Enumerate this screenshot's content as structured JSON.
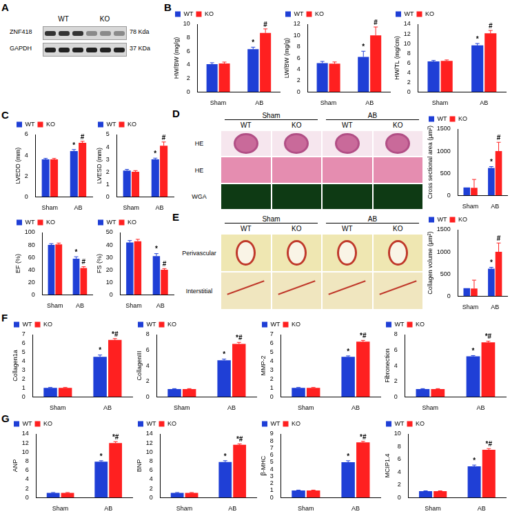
{
  "panel_labels": [
    "A",
    "B",
    "C",
    "D",
    "E",
    "F",
    "G"
  ],
  "blot": {
    "groups": [
      "WT",
      "KO"
    ],
    "bands": [
      {
        "name": "ZNF418",
        "size": "78 Kda"
      },
      {
        "name": "GAPDH",
        "size": "37 KDa"
      }
    ]
  },
  "histology": [
    {
      "groups": [
        "Sham",
        "AB"
      ],
      "columns": [
        "WT",
        "KO",
        "WT",
        "KO"
      ],
      "rows": [
        "HE",
        "HE",
        "WGA"
      ]
    },
    {
      "groups": [
        "Sham",
        "AB"
      ],
      "columns": [
        "WT",
        "KO",
        "WT",
        "KO"
      ],
      "rows": [
        "Perivascular",
        "Interstitial"
      ]
    }
  ],
  "chart_data": [
    {
      "type": "bar",
      "ylabel": "HW/BW (mg/g)",
      "categories": [
        "Sham",
        "AB"
      ],
      "ylim": [
        0,
        10
      ],
      "yticks": [
        0,
        2,
        4,
        6,
        8,
        10
      ],
      "legend": "top-left",
      "grid": false,
      "series": [
        {
          "name": "WT",
          "color": "#1f3fd6",
          "values": [
            4.1,
            6.3
          ],
          "errors": [
            0.2,
            0.3
          ],
          "annotations": [
            null,
            "*"
          ]
        },
        {
          "name": "KO",
          "color": "#ff2020",
          "values": [
            4.2,
            8.7
          ],
          "errors": [
            0.2,
            0.6
          ],
          "annotations": [
            null,
            "#"
          ]
        }
      ]
    },
    {
      "type": "bar",
      "ylabel": "LW/BW (mg/g)",
      "categories": [
        "Sham",
        "AB"
      ],
      "ylim": [
        0,
        12
      ],
      "yticks": [
        0,
        2,
        4,
        6,
        8,
        10,
        12
      ],
      "legend": "top-left",
      "grid": false,
      "series": [
        {
          "name": "WT",
          "color": "#1f3fd6",
          "values": [
            5.1,
            6.2
          ],
          "errors": [
            0.3,
            1.0
          ],
          "annotations": [
            null,
            "*"
          ]
        },
        {
          "name": "KO",
          "color": "#ff2020",
          "values": [
            5.0,
            10.0
          ],
          "errors": [
            0.3,
            1.5
          ],
          "annotations": [
            null,
            "#"
          ]
        }
      ]
    },
    {
      "type": "bar",
      "ylabel": "HW/TL (mg/cm)",
      "categories": [
        "Sham",
        "AB"
      ],
      "ylim": [
        0,
        14
      ],
      "yticks": [
        0,
        2,
        4,
        6,
        8,
        10,
        12,
        14
      ],
      "legend": "top-left",
      "grid": false,
      "series": [
        {
          "name": "WT",
          "color": "#1f3fd6",
          "values": [
            6.3,
            9.6
          ],
          "errors": [
            0.2,
            0.4
          ],
          "annotations": [
            null,
            "*"
          ]
        },
        {
          "name": "KO",
          "color": "#ff2020",
          "values": [
            6.4,
            12.1
          ],
          "errors": [
            0.2,
            0.6
          ],
          "annotations": [
            null,
            "#"
          ]
        }
      ]
    },
    {
      "type": "bar",
      "ylabel": "LVEDD (mm)",
      "categories": [
        "Sham",
        "AB"
      ],
      "ylim": [
        0,
        6
      ],
      "yticks": [
        0,
        2,
        4,
        6
      ],
      "legend": "top-left",
      "grid": false,
      "series": [
        {
          "name": "WT",
          "color": "#1f3fd6",
          "values": [
            3.6,
            4.4
          ],
          "errors": [
            0.1,
            0.15
          ],
          "annotations": [
            null,
            "*"
          ]
        },
        {
          "name": "KO",
          "color": "#ff2020",
          "values": [
            3.6,
            5.2
          ],
          "errors": [
            0.1,
            0.15
          ],
          "annotations": [
            null,
            "#"
          ]
        }
      ]
    },
    {
      "type": "bar",
      "ylabel": "LVESD (mm)",
      "categories": [
        "Sham",
        "AB"
      ],
      "ylim": [
        0,
        5
      ],
      "yticks": [
        0,
        1,
        2,
        3,
        4,
        5
      ],
      "legend": "top-left",
      "grid": false,
      "series": [
        {
          "name": "WT",
          "color": "#1f3fd6",
          "values": [
            2.1,
            3.0
          ],
          "errors": [
            0.1,
            0.1
          ],
          "annotations": [
            null,
            "*"
          ]
        },
        {
          "name": "KO",
          "color": "#ff2020",
          "values": [
            2.0,
            4.1
          ],
          "errors": [
            0.1,
            0.3
          ],
          "annotations": [
            null,
            "#"
          ]
        }
      ]
    },
    {
      "type": "bar",
      "ylabel": "EF (%)",
      "categories": [
        "Sham",
        "AB"
      ],
      "ylim": [
        0,
        100
      ],
      "yticks": [
        0,
        20,
        40,
        60,
        80,
        100
      ],
      "legend": "top-left",
      "grid": false,
      "series": [
        {
          "name": "WT",
          "color": "#1f3fd6",
          "values": [
            80,
            58
          ],
          "errors": [
            2,
            3
          ],
          "annotations": [
            null,
            "*"
          ]
        },
        {
          "name": "KO",
          "color": "#ff2020",
          "values": [
            81,
            43
          ],
          "errors": [
            2,
            2
          ],
          "annotations": [
            null,
            "#"
          ]
        }
      ]
    },
    {
      "type": "bar",
      "ylabel": "FS (%)",
      "categories": [
        "Sham",
        "AB"
      ],
      "ylim": [
        0,
        50
      ],
      "yticks": [
        0,
        10,
        20,
        30,
        40,
        50
      ],
      "legend": "top-left",
      "grid": false,
      "series": [
        {
          "name": "WT",
          "color": "#1f3fd6",
          "values": [
            42,
            31
          ],
          "errors": [
            1.5,
            2
          ],
          "annotations": [
            null,
            "*"
          ]
        },
        {
          "name": "KO",
          "color": "#ff2020",
          "values": [
            43,
            20
          ],
          "errors": [
            1.5,
            1
          ],
          "annotations": [
            null,
            "#"
          ]
        }
      ]
    },
    {
      "type": "bar",
      "ylabel": "Cross sectional area (μm²)",
      "categories": [
        "Sham",
        "AB"
      ],
      "ylim": [
        0,
        1500
      ],
      "yticks": [
        0,
        500,
        1000,
        1500
      ],
      "legend": "top-left",
      "grid": false,
      "series": [
        {
          "name": "WT",
          "color": "#1f3fd6",
          "values": [
            180,
            620
          ],
          "errors": [
            0,
            30
          ],
          "annotations": [
            null,
            "*"
          ]
        },
        {
          "name": "KO",
          "color": "#ff2020",
          "values": [
            170,
            1000
          ],
          "errors": [
            190,
            200
          ],
          "annotations": [
            null,
            "#"
          ]
        }
      ]
    },
    {
      "type": "bar",
      "ylabel": "Collagen volume (μm²)",
      "categories": [
        "Sham",
        "AB"
      ],
      "ylim": [
        0,
        1500
      ],
      "yticks": [
        0,
        500,
        1000,
        1500
      ],
      "legend": "top-left",
      "grid": false,
      "series": [
        {
          "name": "WT",
          "color": "#1f3fd6",
          "values": [
            180,
            620
          ],
          "errors": [
            0,
            30
          ],
          "annotations": [
            null,
            "*"
          ]
        },
        {
          "name": "KO",
          "color": "#ff2020",
          "values": [
            170,
            1000
          ],
          "errors": [
            190,
            200
          ],
          "annotations": [
            null,
            "#"
          ]
        }
      ]
    },
    {
      "type": "bar",
      "ylabel": "Collagen1a",
      "categories": [
        "Sham",
        "AB"
      ],
      "ylim": [
        0,
        7
      ],
      "yticks": [
        0,
        1,
        2,
        3,
        4,
        5,
        6,
        7
      ],
      "legend": "top-left",
      "grid": false,
      "series": [
        {
          "name": "WT",
          "color": "#1f3fd6",
          "values": [
            1,
            4.5
          ],
          "errors": [
            0.05,
            0.2
          ],
          "annotations": [
            null,
            "*"
          ]
        },
        {
          "name": "KO",
          "color": "#ff2020",
          "values": [
            1,
            6.4
          ],
          "errors": [
            0.05,
            0.15
          ],
          "annotations": [
            null,
            "*#"
          ]
        }
      ]
    },
    {
      "type": "bar",
      "ylabel": "CollagenIII",
      "categories": [
        "Sham",
        "AB"
      ],
      "ylim": [
        0,
        8
      ],
      "yticks": [
        0,
        2,
        4,
        6,
        8
      ],
      "legend": "top-left",
      "grid": false,
      "series": [
        {
          "name": "WT",
          "color": "#1f3fd6",
          "values": [
            1,
            4.7
          ],
          "errors": [
            0.05,
            0.15
          ],
          "annotations": [
            null,
            "*"
          ]
        },
        {
          "name": "KO",
          "color": "#ff2020",
          "values": [
            1,
            6.8
          ],
          "errors": [
            0.05,
            0.2
          ],
          "annotations": [
            null,
            "*#"
          ]
        }
      ]
    },
    {
      "type": "bar",
      "ylabel": "MMP-2",
      "categories": [
        "Sham",
        "AB"
      ],
      "ylim": [
        0,
        7
      ],
      "yticks": [
        0,
        1,
        2,
        3,
        4,
        5,
        6,
        7
      ],
      "legend": "top-left",
      "grid": false,
      "series": [
        {
          "name": "WT",
          "color": "#1f3fd6",
          "values": [
            1,
            4.5
          ],
          "errors": [
            0.05,
            0.1
          ],
          "annotations": [
            null,
            "*"
          ]
        },
        {
          "name": "KO",
          "color": "#ff2020",
          "values": [
            1,
            6.2
          ],
          "errors": [
            0.05,
            0.15
          ],
          "annotations": [
            null,
            "*#"
          ]
        }
      ]
    },
    {
      "type": "bar",
      "ylabel": "Fibronection",
      "categories": [
        "Sham",
        "AB"
      ],
      "ylim": [
        0,
        8
      ],
      "yticks": [
        0,
        2,
        4,
        6,
        8
      ],
      "legend": "top-left",
      "grid": false,
      "series": [
        {
          "name": "WT",
          "color": "#1f3fd6",
          "values": [
            1,
            5.2
          ],
          "errors": [
            0.05,
            0.1
          ],
          "annotations": [
            null,
            "*"
          ]
        },
        {
          "name": "KO",
          "color": "#ff2020",
          "values": [
            1,
            7.0
          ],
          "errors": [
            0.05,
            0.15
          ],
          "annotations": [
            null,
            "*#"
          ]
        }
      ]
    },
    {
      "type": "bar",
      "ylabel": "ANP",
      "categories": [
        "Sham",
        "AB"
      ],
      "ylim": [
        0,
        14
      ],
      "yticks": [
        0,
        2,
        4,
        6,
        8,
        10,
        12,
        14
      ],
      "legend": "top-left",
      "grid": false,
      "series": [
        {
          "name": "WT",
          "color": "#1f3fd6",
          "values": [
            1,
            7.9
          ],
          "errors": [
            0.1,
            0.2
          ],
          "annotations": [
            null,
            "*"
          ]
        },
        {
          "name": "KO",
          "color": "#ff2020",
          "values": [
            1,
            12.0
          ],
          "errors": [
            0.1,
            0.3
          ],
          "annotations": [
            null,
            "*#"
          ]
        }
      ]
    },
    {
      "type": "bar",
      "ylabel": "BNP",
      "categories": [
        "Sham",
        "AB"
      ],
      "ylim": [
        0,
        14
      ],
      "yticks": [
        0,
        2,
        4,
        6,
        8,
        10,
        12,
        14
      ],
      "legend": "top-left",
      "grid": false,
      "series": [
        {
          "name": "WT",
          "color": "#1f3fd6",
          "values": [
            1,
            7.8
          ],
          "errors": [
            0.1,
            0.3
          ],
          "annotations": [
            null,
            "*"
          ]
        },
        {
          "name": "KO",
          "color": "#ff2020",
          "values": [
            1,
            11.6
          ],
          "errors": [
            0.1,
            0.2
          ],
          "annotations": [
            null,
            "*#"
          ]
        }
      ]
    },
    {
      "type": "bar",
      "ylabel": "β-MHC",
      "categories": [
        "Sham",
        "AB"
      ],
      "ylim": [
        0,
        9
      ],
      "yticks": [
        0,
        1,
        2,
        3,
        4,
        5,
        6,
        7,
        8,
        9
      ],
      "legend": "top-left",
      "grid": false,
      "series": [
        {
          "name": "WT",
          "color": "#1f3fd6",
          "values": [
            1,
            5.0
          ],
          "errors": [
            0.05,
            0.2
          ],
          "annotations": [
            null,
            "*"
          ]
        },
        {
          "name": "KO",
          "color": "#ff2020",
          "values": [
            1,
            7.8
          ],
          "errors": [
            0.05,
            0.15
          ],
          "annotations": [
            null,
            "*#"
          ]
        }
      ]
    },
    {
      "type": "bar",
      "ylabel": "MCIP1.4",
      "categories": [
        "Sham",
        "AB"
      ],
      "ylim": [
        0,
        10
      ],
      "yticks": [
        0,
        2,
        4,
        6,
        8,
        10
      ],
      "legend": "top-left",
      "grid": false,
      "series": [
        {
          "name": "WT",
          "color": "#1f3fd6",
          "values": [
            1,
            4.9
          ],
          "errors": [
            0.05,
            0.2
          ],
          "annotations": [
            null,
            "*"
          ]
        },
        {
          "name": "KO",
          "color": "#ff2020",
          "values": [
            1,
            7.5
          ],
          "errors": [
            0.05,
            0.2
          ],
          "annotations": [
            null,
            "*#"
          ]
        }
      ]
    }
  ]
}
